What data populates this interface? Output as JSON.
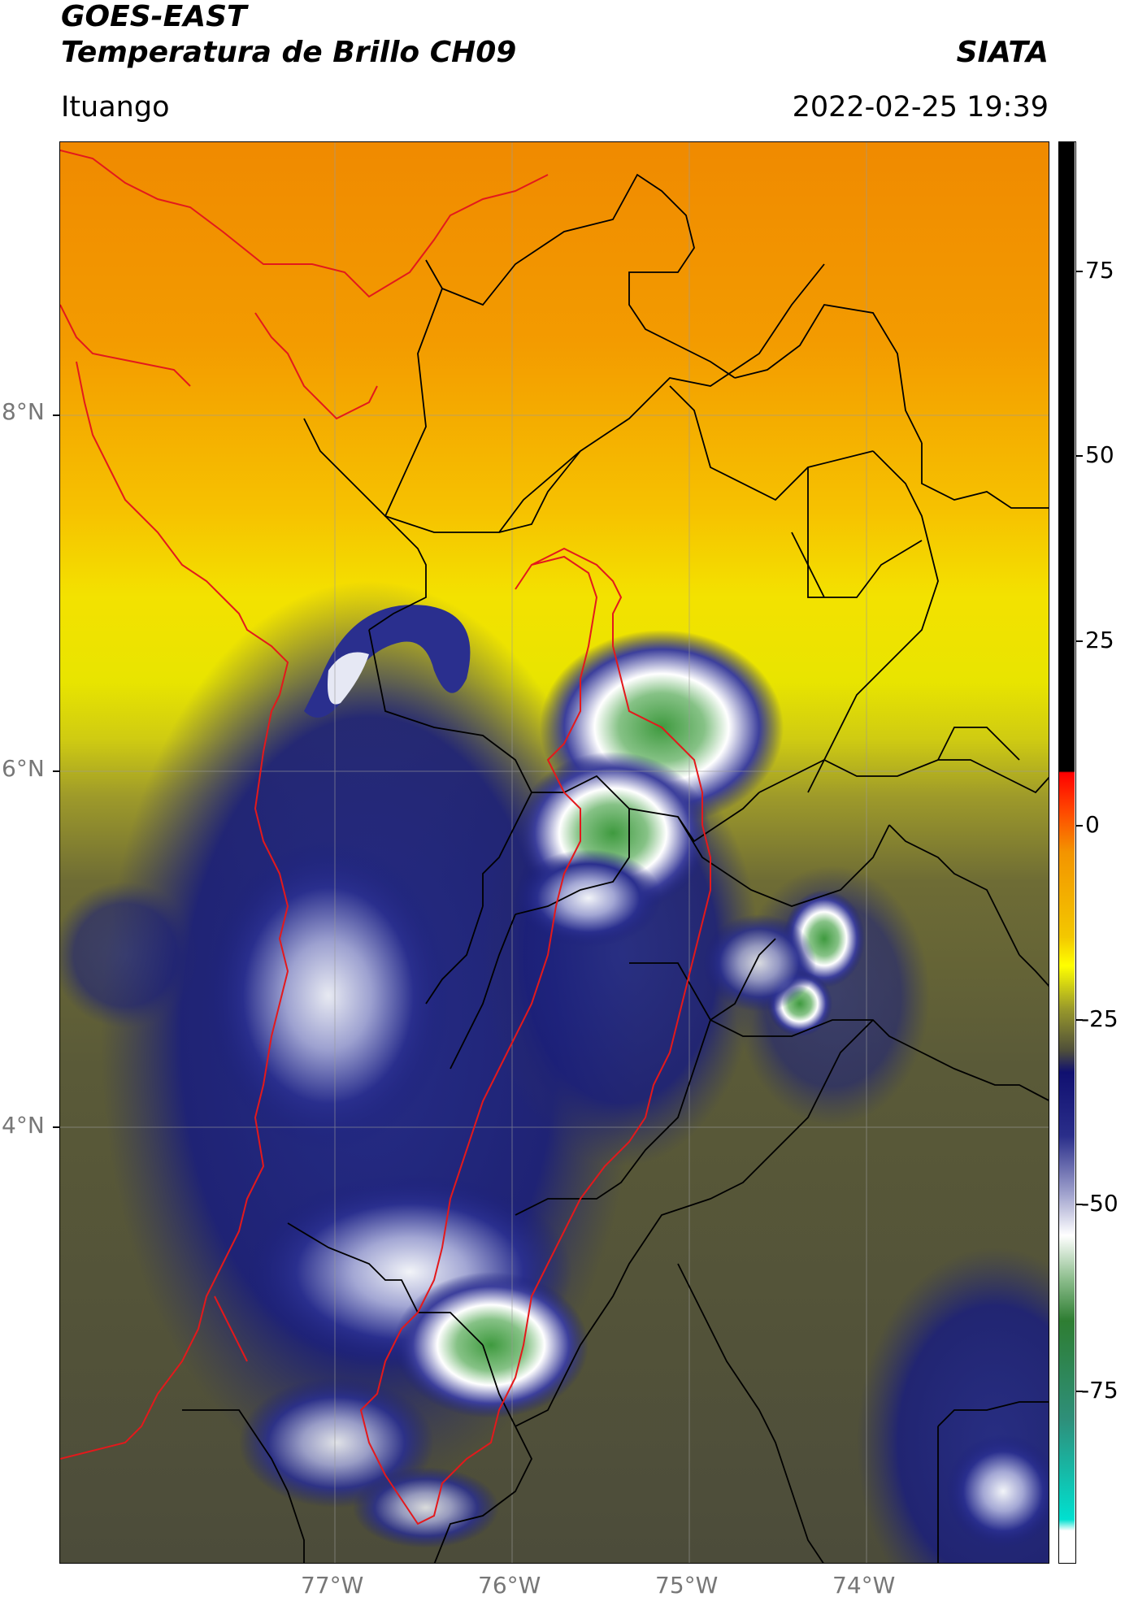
{
  "header": {
    "title_line1": "GOES-EAST",
    "title_line2": "Temperatura de Brillo CH09",
    "brand": "SIATA",
    "region": "Ituango",
    "datetime": "2022-02-25 19:39"
  },
  "map": {
    "lat_labels": [
      "8°N",
      "6°N",
      "4°N"
    ],
    "lon_labels": [
      "77°W",
      "76°W",
      "75°W",
      "74°W"
    ],
    "colors": {
      "warm": "#f39400",
      "yellow": "#f0e400",
      "olive": "#5f5f33",
      "navy": "#1b1f7a",
      "white": "#f2f4f8",
      "green": "#3a8a3a",
      "border_red": "#e3191c",
      "border_black": "#000000"
    }
  },
  "colorbar": {
    "ticks": [
      "75",
      "50",
      "25",
      "0",
      "-25",
      "-50",
      "-75"
    ],
    "colors": [
      "#000000",
      "#ff0000",
      "#f39400",
      "#ffff00",
      "#6a6a3a",
      "#141478",
      "#9ea0cc",
      "#ffffff",
      "#2e7d32",
      "#00e0d0",
      "#ffffff"
    ]
  }
}
